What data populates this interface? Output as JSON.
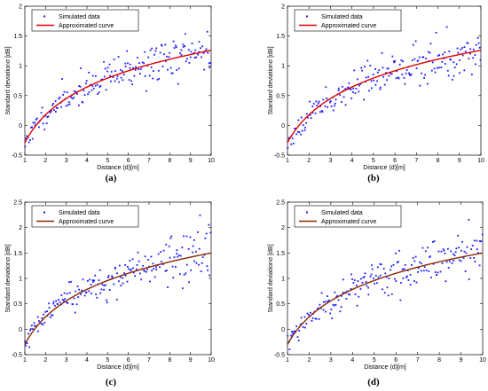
{
  "legend": {
    "scatter_label": "Simulated data",
    "curve_label": "Approximated curve"
  },
  "colors": {
    "scatter": "#1a1aff",
    "curve_ab": "#e00000",
    "curve_cd": "#8b2500",
    "axis": "#000000"
  },
  "chart_data": [
    {
      "id": "a",
      "panel_label": "(a)",
      "type": "scatter",
      "xlabel": "Distance (d)[m]",
      "ylabel": "Standard deviationσ [dB]",
      "xlim": [
        1,
        10
      ],
      "ylim": [
        -0.5,
        2
      ],
      "xticks": [
        1,
        2,
        3,
        4,
        5,
        6,
        7,
        8,
        9,
        10
      ],
      "yticks": [
        -0.5,
        0,
        0.5,
        1,
        1.5,
        2
      ],
      "legend_position": "top-left",
      "curve": {
        "a": -0.29,
        "b": 1.55
      },
      "scatter_seed": 11,
      "scatter_noise": 0.22
    },
    {
      "id": "b",
      "panel_label": "(b)",
      "type": "scatter",
      "xlabel": "Distance (d)[m]",
      "ylabel": "Standard deviationσ [dB]",
      "xlim": [
        1,
        10
      ],
      "ylim": [
        -0.5,
        2
      ],
      "xticks": [
        1,
        2,
        3,
        4,
        5,
        6,
        7,
        8,
        9,
        10
      ],
      "yticks": [
        -0.5,
        0,
        0.5,
        1,
        1.5,
        2
      ],
      "legend_position": "top-left",
      "curve": {
        "a": -0.29,
        "b": 1.55
      },
      "scatter_seed": 23,
      "scatter_noise": 0.22
    },
    {
      "id": "c",
      "panel_label": "(c)",
      "type": "scatter",
      "xlabel": "Distance (d)[m]",
      "ylabel": "Standard deviationσ [dB]",
      "xlim": [
        1,
        10
      ],
      "ylim": [
        -0.5,
        2.5
      ],
      "xticks": [
        1,
        2,
        3,
        4,
        5,
        6,
        7,
        8,
        9,
        10
      ],
      "yticks": [
        -0.5,
        0,
        0.5,
        1,
        1.5,
        2,
        2.5
      ],
      "legend_position": "top-left",
      "curve": {
        "a": -0.3,
        "b": 1.8
      },
      "scatter_seed": 37,
      "scatter_noise": 0.27
    },
    {
      "id": "d",
      "panel_label": "(d)",
      "type": "scatter",
      "xlabel": "Distance (d)[m]",
      "ylabel": "Standard deviationσ [dB]",
      "xlim": [
        1,
        10
      ],
      "ylim": [
        -0.5,
        2.5
      ],
      "xticks": [
        1,
        2,
        3,
        4,
        5,
        6,
        7,
        8,
        9,
        10
      ],
      "yticks": [
        -0.5,
        0,
        0.5,
        1,
        1.5,
        2,
        2.5
      ],
      "legend_position": "top-left",
      "curve": {
        "a": -0.3,
        "b": 1.8
      },
      "scatter_seed": 53,
      "scatter_noise": 0.27
    }
  ]
}
